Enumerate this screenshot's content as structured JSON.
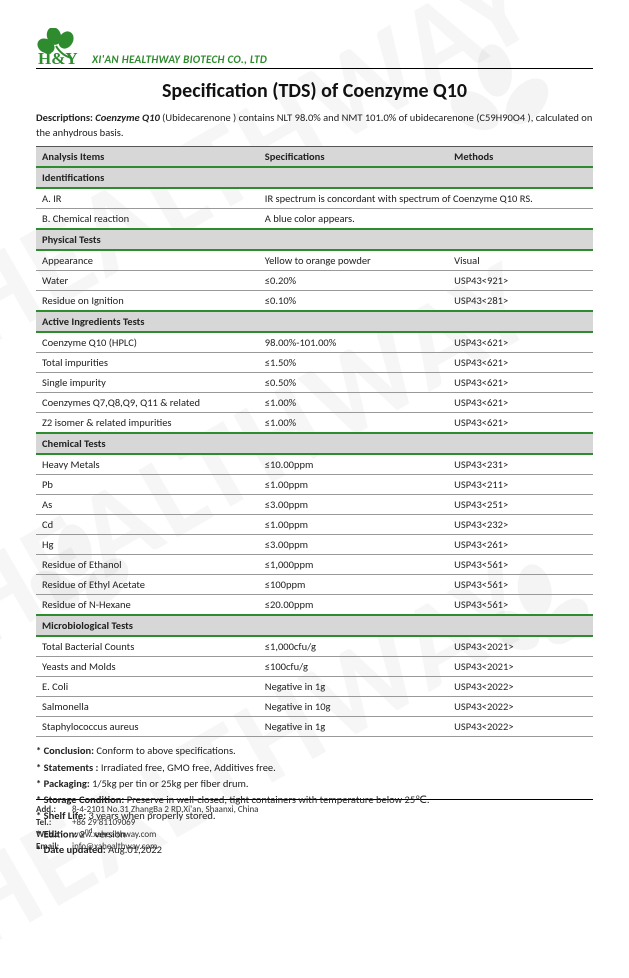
{
  "company": {
    "logo_text": "H&Y",
    "logo_color": "#2e8b2e",
    "name": "XI'AN HEALTHWAY BIOTECH CO., LTD"
  },
  "title": "Specification (TDS) of Coenzyme Q10",
  "description_label": "Descriptions:",
  "description_product": "Coenzyme Q10",
  "description_body": " (Ubidecarenone ) contains NLT 98.0% and NMT 101.0% of ubidecarenone (C59H90O4 ), calculated on the anhydrous basis.",
  "columns": {
    "items": "Analysis Items",
    "spec": "Specifications",
    "method": "Methods"
  },
  "sections": [
    {
      "name": "Identifications",
      "rows": [
        {
          "item": "A.  IR",
          "spec": "IR spectrum is concordant with spectrum of Coenzyme Q10 RS.",
          "method": "",
          "span": true
        },
        {
          "item": "B.  Chemical reaction",
          "spec": "A blue color appears.",
          "method": ""
        }
      ]
    },
    {
      "name": "Physical Tests",
      "rows": [
        {
          "item": "Appearance",
          "spec": "Yellow to orange powder",
          "method": "Visual"
        },
        {
          "item": "Water",
          "spec": "≤0.20%",
          "method": "USP43<921>"
        },
        {
          "item": "Residue on Ignition",
          "spec": "≤0.10%",
          "method": "USP43<281>"
        }
      ]
    },
    {
      "name": "Active Ingredients Tests",
      "rows": [
        {
          "item": "Coenzyme Q10 (HPLC)",
          "spec": "98.00%-101.00%",
          "method": "USP43<621>"
        },
        {
          "item": "Total impurities",
          "spec": "≤1.50%",
          "method": "USP43<621>"
        },
        {
          "item": "Single impurity",
          "spec": "≤0.50%",
          "method": "USP43<621>"
        },
        {
          "item": "Coenzymes Q7,Q8,Q9, Q11 & related",
          "spec": "≤1.00%",
          "method": "USP43<621>"
        },
        {
          "item": "Z2 isomer & related impurities",
          "spec": "≤1.00%",
          "method": "USP43<621>"
        }
      ]
    },
    {
      "name": "Chemical Tests",
      "rows": [
        {
          "item": "Heavy Metals",
          "spec": "≤10.00ppm",
          "method": "USP43<231>"
        },
        {
          "item": "Pb",
          "spec": "≤1.00ppm",
          "method": "USP43<211>"
        },
        {
          "item": "As",
          "spec": "≤3.00ppm",
          "method": "USP43<251>"
        },
        {
          "item": "Cd",
          "spec": "≤1.00ppm",
          "method": "USP43<232>"
        },
        {
          "item": "Hg",
          "spec": "≤3.00ppm",
          "method": "USP43<261>"
        },
        {
          "item": "Residue of Ethanol",
          "spec": "≤1,000ppm",
          "method": "USP43<561>"
        },
        {
          "item": "Residue of Ethyl Acetate",
          "spec": "≤100ppm",
          "method": "USP43<561>"
        },
        {
          "item": "Residue of N-Hexane",
          "spec": "≤20.00ppm",
          "method": "USP43<561>"
        }
      ]
    },
    {
      "name": "Microbiological Tests",
      "rows": [
        {
          "item": "Total Bacterial Counts",
          "spec": "≤1,000cfu/g",
          "method": "USP43<2021>"
        },
        {
          "item": "Yeasts and Molds",
          "spec": "≤100cfu/g",
          "method": "USP43<2021>"
        },
        {
          "item": "E. Coli",
          "spec": "Negative in 1g",
          "method": "USP43<2022>"
        },
        {
          "item": "Salmonella",
          "spec": "Negative in 10g",
          "method": "USP43<2022>"
        },
        {
          "item": "Staphylococcus aureus",
          "spec": "Negative in 1g",
          "method": "USP43<2022>"
        }
      ]
    }
  ],
  "notes": [
    {
      "label": "* Conclusion:",
      "text": " Conform to above specifications."
    },
    {
      "label": "* Statements :",
      "text": " Irradiated free, GMO free, Additives free."
    },
    {
      "label": "* Packaging:",
      "text": " 1/5kg per tin or 25kg per fiber drum."
    },
    {
      "label": "* Storage Condition:",
      "text": " Preserve in well-closed, tight containers with temperature below 25℃."
    },
    {
      "label": "* Shelf Life:",
      "text": " 3 years when properly stored."
    },
    {
      "label": "* Edition:",
      "text": " 2",
      "sup": "nd",
      "tail": " version"
    },
    {
      "label": "* Date updated:",
      "text": " Aug.01,2022"
    }
  ],
  "footer": {
    "add_label": "Add.:",
    "add": "8-4-2101 No.31 ZhangBa 2 RD,Xi'an, Shaanxi, China",
    "tel_label": "Tel.:",
    "tel": "+86 29 81109069",
    "web_label": "Web.:",
    "web": "www.xahealthway.com",
    "email_label": "Email:",
    "email": "info@xahealthway.com"
  },
  "watermark_text": "HEALTHWAY"
}
